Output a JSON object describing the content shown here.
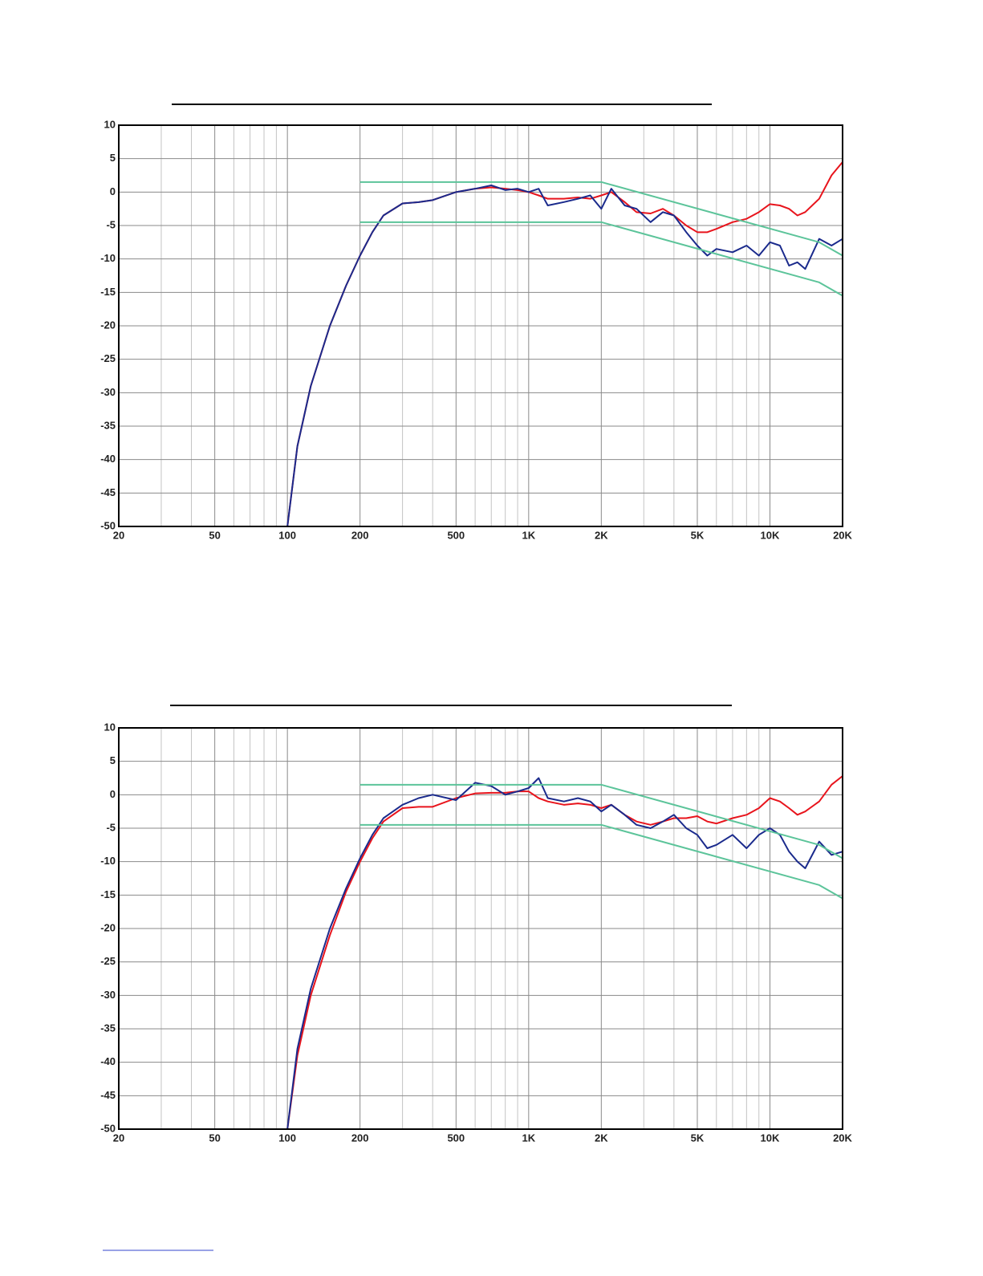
{
  "chart_data": [
    {
      "type": "line",
      "log_x": true,
      "grid": true,
      "xlim": [
        20,
        20000
      ],
      "ylim": [
        -50,
        10
      ],
      "xticks": [
        20,
        50,
        100,
        200,
        500,
        {
          "value": 1000,
          "label": "1K"
        },
        {
          "value": 2000,
          "label": "2K"
        },
        {
          "value": 5000,
          "label": "5K"
        },
        {
          "value": 10000,
          "label": "10K"
        },
        {
          "value": 20000,
          "label": "20K"
        }
      ],
      "xticks_minor": [
        30,
        40,
        60,
        70,
        80,
        90,
        300,
        400,
        600,
        700,
        800,
        900,
        3000,
        4000,
        6000,
        7000,
        8000,
        9000
      ],
      "yticks": [
        10,
        5,
        0,
        -5,
        -10,
        -15,
        -20,
        -25,
        -30,
        -35,
        -40,
        -45,
        -50
      ],
      "x": [
        20,
        100,
        110,
        125,
        150,
        175,
        200,
        225,
        250,
        300,
        350,
        400,
        500,
        600,
        700,
        800,
        900,
        1000,
        1100,
        1200,
        1400,
        1600,
        1800,
        2000,
        2200,
        2500,
        2800,
        3200,
        3600,
        4000,
        4500,
        5000,
        5500,
        6000,
        7000,
        8000,
        9000,
        10000,
        11000,
        12000,
        13000,
        14000,
        16000,
        18000,
        20000
      ],
      "series": [
        {
          "color": "#e8141c",
          "values": [
            -50,
            -50,
            -38,
            -29,
            -20,
            -14,
            -9.5,
            -6,
            -3.5,
            -1.7,
            -1.5,
            -1.2,
            0,
            0.5,
            0.7,
            0.5,
            0.3,
            0,
            -0.5,
            -1,
            -1,
            -0.8,
            -1,
            -0.5,
            0,
            -1.5,
            -3,
            -3.2,
            -2.5,
            -3.5,
            -5,
            -6,
            -6,
            -5.5,
            -4.5,
            -4,
            -3,
            -1.8,
            -2,
            -2.5,
            -3.5,
            -3,
            -1,
            2.5,
            4.5
          ]
        },
        {
          "color": "#1a2a8c",
          "values": [
            -50,
            -50,
            -38,
            -29,
            -20,
            -14,
            -9.5,
            -6,
            -3.5,
            -1.7,
            -1.5,
            -1.2,
            0,
            0.5,
            1,
            0.3,
            0.5,
            0,
            0.5,
            -2,
            -1.5,
            -1,
            -0.5,
            -2.5,
            0.5,
            -2,
            -2.5,
            -4.5,
            -3,
            -3.5,
            -6,
            -8,
            -9.5,
            -8.5,
            -9,
            -8,
            -9.5,
            -7.5,
            -8,
            -11,
            -10.5,
            -11.5,
            -7,
            -8,
            -7
          ]
        },
        {
          "color": "#5cc49a",
          "x": [
            200,
            2000,
            16000,
            20000
          ],
          "values": [
            1.5,
            1.5,
            -7.5,
            -9.5
          ]
        },
        {
          "color": "#5cc49a",
          "x": [
            200,
            2000,
            16000,
            20000
          ],
          "values": [
            -4.5,
            -4.5,
            -13.5,
            -15.5
          ]
        }
      ]
    },
    {
      "type": "line",
      "log_x": true,
      "grid": true,
      "xlim": [
        20,
        20000
      ],
      "ylim": [
        -50,
        10
      ],
      "xticks": [
        20,
        50,
        100,
        200,
        500,
        {
          "value": 1000,
          "label": "1K"
        },
        {
          "value": 2000,
          "label": "2K"
        },
        {
          "value": 5000,
          "label": "5K"
        },
        {
          "value": 10000,
          "label": "10K"
        },
        {
          "value": 20000,
          "label": "20K"
        }
      ],
      "xticks_minor": [
        30,
        40,
        60,
        70,
        80,
        90,
        300,
        400,
        600,
        700,
        800,
        900,
        3000,
        4000,
        6000,
        7000,
        8000,
        9000
      ],
      "yticks": [
        10,
        5,
        0,
        -5,
        -10,
        -15,
        -20,
        -25,
        -30,
        -35,
        -40,
        -45,
        -50
      ],
      "x": [
        20,
        100,
        110,
        125,
        150,
        175,
        200,
        225,
        250,
        300,
        350,
        400,
        500,
        600,
        700,
        800,
        900,
        1000,
        1100,
        1200,
        1400,
        1600,
        1800,
        2000,
        2200,
        2500,
        2800,
        3200,
        3600,
        4000,
        4500,
        5000,
        5500,
        6000,
        7000,
        8000,
        9000,
        10000,
        11000,
        12000,
        13000,
        14000,
        16000,
        18000,
        20000
      ],
      "series": [
        {
          "color": "#e8141c",
          "values": [
            -50,
            -50,
            -39,
            -30,
            -21,
            -14.5,
            -10,
            -6.5,
            -4,
            -2,
            -1.8,
            -1.8,
            -0.5,
            0.2,
            0.3,
            0.3,
            0.5,
            0.5,
            -0.5,
            -1,
            -1.5,
            -1.3,
            -1.5,
            -2,
            -1.5,
            -3,
            -4,
            -4.5,
            -4,
            -3.5,
            -3.5,
            -3.2,
            -4,
            -4.3,
            -3.5,
            -3,
            -2,
            -0.5,
            -1,
            -2,
            -3,
            -2.5,
            -1,
            1.5,
            2.8
          ]
        },
        {
          "color": "#1a2a8c",
          "values": [
            -50,
            -50,
            -38,
            -29,
            -20,
            -14,
            -9.5,
            -6,
            -3.5,
            -1.5,
            -0.5,
            0,
            -0.8,
            1.8,
            1.3,
            0,
            0.5,
            1,
            2.5,
            -0.5,
            -1,
            -0.5,
            -1,
            -2.5,
            -1.5,
            -3,
            -4.5,
            -5,
            -4,
            -3,
            -5,
            -6,
            -8,
            -7.5,
            -6,
            -8,
            -6,
            -5,
            -6,
            -8.5,
            -10,
            -11,
            -7,
            -9,
            -8.5
          ]
        },
        {
          "color": "#5cc49a",
          "x": [
            200,
            2000,
            16000,
            20000
          ],
          "values": [
            1.5,
            1.5,
            -7.5,
            -9.5
          ]
        },
        {
          "color": "#5cc49a",
          "x": [
            200,
            2000,
            16000,
            20000
          ],
          "values": [
            -4.5,
            -4.5,
            -13.5,
            -15.5
          ]
        }
      ]
    }
  ]
}
